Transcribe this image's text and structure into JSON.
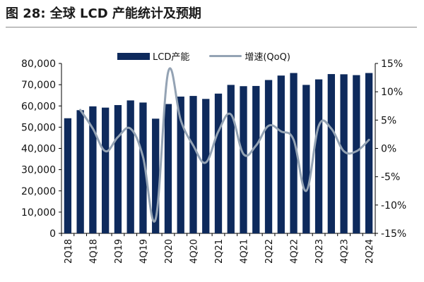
{
  "figure": {
    "title": "图 28:  全球 LCD 产能统计及预期"
  },
  "chart_data": {
    "type": "bar",
    "categories": [
      "2Q18",
      "3Q18",
      "4Q18",
      "1Q19",
      "2Q19",
      "3Q19",
      "4Q19",
      "1Q20",
      "2Q20",
      "3Q20",
      "4Q20",
      "1Q21",
      "2Q21",
      "3Q21",
      "4Q21",
      "1Q22",
      "2Q22",
      "3Q22",
      "4Q22",
      "1Q23",
      "2Q23",
      "3Q23",
      "4Q23",
      "1Q24",
      "2Q24"
    ],
    "tick_labels": [
      "2Q18",
      "4Q18",
      "2Q19",
      "4Q19",
      "2Q20",
      "4Q20",
      "2Q21",
      "4Q21",
      "2Q22",
      "4Q22",
      "2Q23",
      "4Q23",
      "2Q24"
    ],
    "series": [
      {
        "name": "LCD产能",
        "type": "bar",
        "axis": "left",
        "color": "#0e2a5c",
        "values": [
          54200,
          58000,
          59800,
          59200,
          60400,
          62600,
          61600,
          54000,
          60900,
          64400,
          64700,
          63300,
          65800,
          69900,
          69300,
          69400,
          72200,
          74300,
          75500,
          69900,
          72500,
          75000,
          74900,
          74500,
          75500
        ]
      },
      {
        "name": "增速(QoQ)",
        "type": "line",
        "axis": "right",
        "color": "#94a3b4",
        "values": [
          null,
          6.8,
          3.5,
          -0.5,
          2.0,
          3.5,
          -1.5,
          -12.5,
          13.5,
          5.0,
          0.5,
          -2.5,
          3.0,
          6.0,
          -1.0,
          0.5,
          4.0,
          3.0,
          1.5,
          -7.5,
          4.0,
          3.5,
          -0.5,
          -0.5,
          1.5
        ]
      }
    ],
    "yleft": {
      "min": 0,
      "max": 80000,
      "ticks": [
        "0",
        "10,000",
        "20,000",
        "30,000",
        "40,000",
        "50,000",
        "60,000",
        "70,000",
        "80,000"
      ]
    },
    "yright": {
      "min": -15,
      "max": 15,
      "ticks": [
        "-15%",
        "-10%",
        "-5%",
        "0%",
        "5%",
        "10%",
        "15%"
      ]
    },
    "legend_position": "top",
    "grid": false
  }
}
